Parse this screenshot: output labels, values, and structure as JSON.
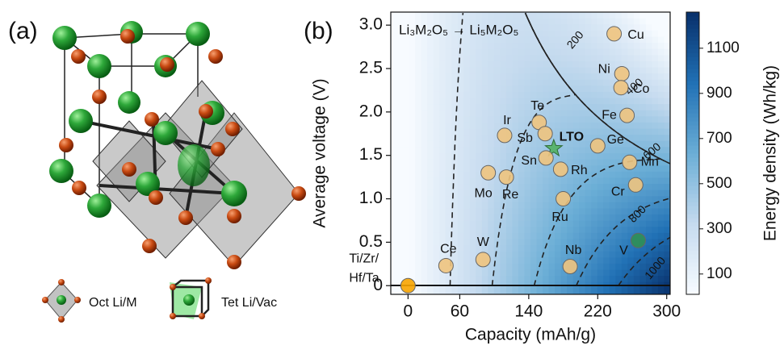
{
  "panel_a": {
    "label": "(a)",
    "legend": [
      "Oct Li/M",
      "Tet Li/Vac"
    ]
  },
  "chart_data": {
    "type": "scatter",
    "panel_label": "(b)",
    "annotation": "Li₃M₂O₅ → Li₅M₂O₅",
    "xlabel": "Capacity (mAh/g)",
    "ylabel": "Average voltage (V)",
    "labels": [
      [
        "Ti/Zr/",
        "Hf/Ta"
      ],
      "Ce",
      "W",
      "Mo",
      "Re",
      "Ir",
      "Te",
      "Sb",
      "LTO",
      "Sn",
      "Rh",
      "Ru",
      "Ge",
      "Nb",
      "Cu",
      "Ni",
      "Co",
      "Fe",
      "Mn",
      "Cr",
      "V"
    ],
    "x": [
      0,
      44,
      87,
      93,
      114,
      112,
      152,
      159,
      169,
      160,
      177,
      180,
      220,
      188,
      239,
      248,
      247,
      254,
      257,
      264,
      267
    ],
    "values": [
      0,
      0.23,
      0.3,
      1.3,
      1.25,
      1.73,
      1.88,
      1.75,
      1.58,
      1.47,
      1.34,
      1.0,
      1.61,
      0.22,
      2.9,
      2.44,
      2.28,
      1.96,
      1.42,
      1.16,
      0.52
    ],
    "colors": [
      "#f7a400",
      "#efc47e",
      "#efc47e",
      "#efc47e",
      "#efc47e",
      "#efc47e",
      "#efc47e",
      "#efc47e",
      "#4fb05a",
      "#efc47e",
      "#efc47e",
      "#efc47e",
      "#efc47e",
      "#efc47e",
      "#efc47e",
      "#efc47e",
      "#efc47e",
      "#efc47e",
      "#efc47e",
      "#efc47e",
      "#2f8f55"
    ],
    "markers": [
      "circle",
      "circle",
      "circle",
      "circle",
      "circle",
      "circle",
      "circle",
      "circle",
      "star",
      "circle",
      "circle",
      "circle",
      "circle",
      "circle",
      "circle",
      "circle",
      "circle",
      "circle",
      "circle",
      "circle",
      "circle"
    ],
    "xlim": [
      -20,
      304
    ],
    "ylim": [
      -0.1,
      3.15
    ],
    "xticks": [
      0,
      60,
      140,
      220,
      300
    ],
    "yticks": [
      0,
      0.5,
      {
        "value": 1,
        "label": "1.0"
      },
      1.5,
      {
        "value": 2,
        "label": "2.0"
      },
      2.5,
      {
        "value": 3,
        "label": "3.0"
      }
    ],
    "contours": [
      200,
      400,
      600,
      800,
      1000
    ],
    "colorbar": {
      "label": "Energy density (Wh/kg)",
      "lim": [
        10,
        1260
      ],
      "ticks": [
        100,
        300,
        500,
        700,
        900,
        1100
      ]
    }
  }
}
